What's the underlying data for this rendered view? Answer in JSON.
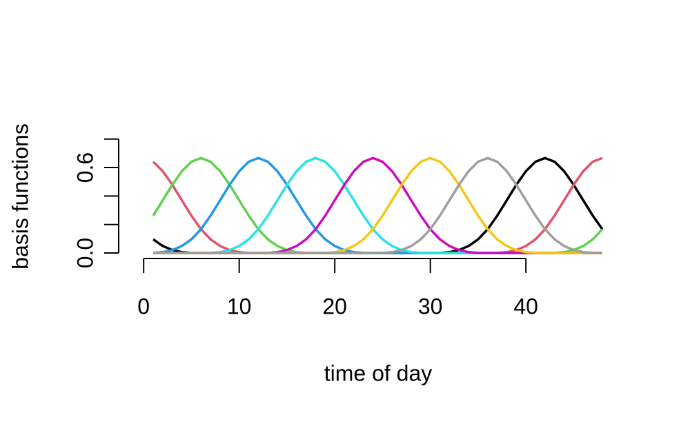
{
  "chart_data": {
    "type": "line",
    "xlabel": "time of day",
    "ylabel": "basis functions",
    "x": [
      1,
      2,
      3,
      4,
      5,
      6,
      7,
      8,
      9,
      10,
      11,
      12,
      13,
      14,
      15,
      16,
      17,
      18,
      19,
      20,
      21,
      22,
      23,
      24,
      25,
      26,
      27,
      28,
      29,
      30,
      31,
      32,
      33,
      34,
      35,
      36,
      37,
      38,
      39,
      40,
      41,
      42,
      43,
      44,
      45,
      46,
      47,
      48
    ],
    "series": [
      {
        "color": "#000000",
        "values": [
          0.096,
          0.049,
          0.021,
          0.006,
          0.001,
          0,
          0,
          0,
          0,
          0,
          0,
          0,
          0,
          0,
          0,
          0,
          0,
          0,
          0,
          0,
          0,
          0,
          0,
          0,
          0,
          0,
          0,
          0,
          0,
          0,
          0.001,
          0.006,
          0.021,
          0.049,
          0.096,
          0.167,
          0.262,
          0.37,
          0.479,
          0.574,
          0.641,
          0.667,
          0.641,
          0.574,
          0.479,
          0.37,
          0.262,
          0.167
        ]
      },
      {
        "color": "#DF536B",
        "values": [
          0.641,
          0.574,
          0.479,
          0.37,
          0.262,
          0.167,
          0.096,
          0.049,
          0.021,
          0.006,
          0.001,
          0,
          0,
          0,
          0,
          0,
          0,
          0,
          0,
          0,
          0,
          0,
          0,
          0,
          0,
          0,
          0,
          0,
          0,
          0,
          0,
          0,
          0,
          0,
          0,
          0,
          0.001,
          0.006,
          0.021,
          0.049,
          0.096,
          0.167,
          0.262,
          0.37,
          0.479,
          0.574,
          0.641,
          0.667
        ]
      },
      {
        "color": "#61D04F",
        "values": [
          0.262,
          0.37,
          0.479,
          0.574,
          0.641,
          0.667,
          0.641,
          0.574,
          0.479,
          0.37,
          0.262,
          0.167,
          0.096,
          0.049,
          0.021,
          0.006,
          0.001,
          0,
          0,
          0,
          0,
          0,
          0,
          0,
          0,
          0,
          0,
          0,
          0,
          0,
          0,
          0,
          0,
          0,
          0,
          0,
          0,
          0,
          0,
          0,
          0,
          0,
          0.001,
          0.006,
          0.021,
          0.049,
          0.096,
          0.167
        ]
      },
      {
        "color": "#2297E6",
        "values": [
          0.001,
          0.006,
          0.021,
          0.049,
          0.096,
          0.167,
          0.262,
          0.37,
          0.479,
          0.574,
          0.641,
          0.667,
          0.641,
          0.574,
          0.479,
          0.37,
          0.262,
          0.167,
          0.096,
          0.049,
          0.021,
          0.006,
          0.001,
          0,
          0,
          0,
          0,
          0,
          0,
          0,
          0,
          0,
          0,
          0,
          0,
          0,
          0,
          0,
          0,
          0,
          0,
          0,
          0,
          0,
          0,
          0,
          0,
          0
        ]
      },
      {
        "color": "#28E2E5",
        "values": [
          0,
          0,
          0,
          0,
          0,
          0,
          0.001,
          0.006,
          0.021,
          0.049,
          0.096,
          0.167,
          0.262,
          0.37,
          0.479,
          0.574,
          0.641,
          0.667,
          0.641,
          0.574,
          0.479,
          0.37,
          0.262,
          0.167,
          0.096,
          0.049,
          0.021,
          0.006,
          0.001,
          0,
          0,
          0,
          0,
          0,
          0,
          0,
          0,
          0,
          0,
          0,
          0,
          0,
          0,
          0,
          0,
          0,
          0,
          0
        ]
      },
      {
        "color": "#CD0BBC",
        "values": [
          0,
          0,
          0,
          0,
          0,
          0,
          0,
          0,
          0,
          0,
          0,
          0,
          0.001,
          0.006,
          0.021,
          0.049,
          0.096,
          0.167,
          0.262,
          0.37,
          0.479,
          0.574,
          0.641,
          0.667,
          0.641,
          0.574,
          0.479,
          0.37,
          0.262,
          0.167,
          0.096,
          0.049,
          0.021,
          0.006,
          0.001,
          0,
          0,
          0,
          0,
          0,
          0,
          0,
          0,
          0,
          0,
          0,
          0,
          0
        ]
      },
      {
        "color": "#F5C710",
        "values": [
          0,
          0,
          0,
          0,
          0,
          0,
          0,
          0,
          0,
          0,
          0,
          0,
          0,
          0,
          0,
          0,
          0,
          0,
          0.001,
          0.006,
          0.021,
          0.049,
          0.096,
          0.167,
          0.262,
          0.37,
          0.479,
          0.574,
          0.641,
          0.667,
          0.641,
          0.574,
          0.479,
          0.37,
          0.262,
          0.167,
          0.096,
          0.049,
          0.021,
          0.006,
          0.001,
          0,
          0,
          0,
          0,
          0,
          0,
          0
        ]
      },
      {
        "color": "#9E9E9E",
        "values": [
          0,
          0,
          0,
          0,
          0,
          0,
          0,
          0,
          0,
          0,
          0,
          0,
          0,
          0,
          0,
          0,
          0,
          0,
          0,
          0,
          0,
          0,
          0,
          0,
          0.001,
          0.006,
          0.021,
          0.049,
          0.096,
          0.167,
          0.262,
          0.37,
          0.479,
          0.574,
          0.641,
          0.667,
          0.641,
          0.574,
          0.479,
          0.37,
          0.262,
          0.167,
          0.096,
          0.049,
          0.021,
          0.006,
          0.001,
          0
        ]
      }
    ],
    "xlim": [
      -0.88,
      49.88
    ],
    "xticks": [
      0,
      10,
      20,
      30,
      40
    ],
    "ylim": [
      -0.027,
      0.697
    ],
    "yticks": [
      {
        "value": 0,
        "label": "0.0"
      },
      0.2,
      0.4,
      {
        "value": 0.6,
        "label": "0.6"
      },
      0.8
    ],
    "grid": false
  }
}
